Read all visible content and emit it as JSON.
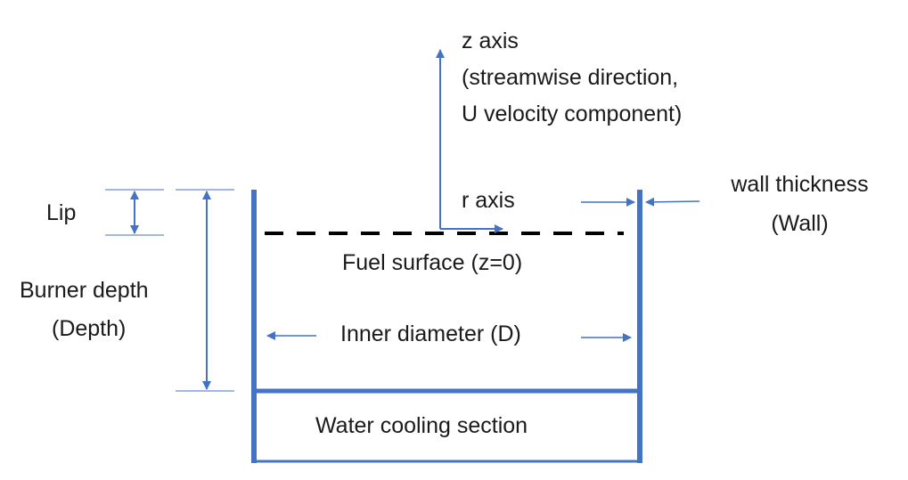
{
  "labels": {
    "z_axis_1": "z axis",
    "z_axis_2": "(streamwise direction,",
    "z_axis_3": "U velocity component)",
    "r_axis": "r axis",
    "wall_1": "wall thickness",
    "wall_2": "(Wall)",
    "lip": "Lip",
    "depth_1": "Burner depth",
    "depth_2": "(Depth)",
    "fuel_surface": "Fuel surface (z=0)",
    "inner_diameter": "Inner diameter (D)",
    "water_cooling": "Water cooling section"
  },
  "colors": {
    "wall": "#4472C4",
    "arrows": "#4472C4",
    "dimension_lines": "#4472C4",
    "fuel_surface_line": "#000000",
    "text": "#1a1a1a"
  }
}
